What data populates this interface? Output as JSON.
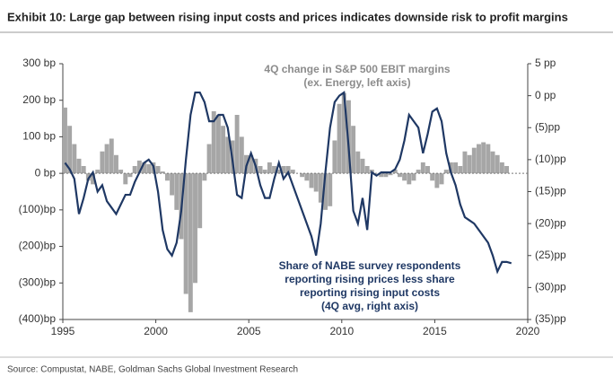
{
  "chart_data": {
    "type": "bar_line",
    "title": "Exhibit 10: Large gap between rising input costs and prices indicates downside risk to profit margins",
    "source": "Source: Compustat, NABE, Goldman Sachs Global Investment Research",
    "annotations": [
      [
        "4Q change in S&P 500 EBIT margins",
        "(ex. Energy, left axis)"
      ],
      [
        "Share of NABE survey respondents",
        "reporting rising prices less share",
        "reporting rising input costs",
        "(4Q avg, right axis)"
      ]
    ],
    "x": [
      1995,
      1995.25,
      1995.5,
      1995.75,
      1996,
      1996.25,
      1996.5,
      1996.75,
      1997,
      1997.25,
      1997.5,
      1997.75,
      1998,
      1998.25,
      1998.5,
      1998.75,
      1999,
      1999.25,
      1999.5,
      1999.75,
      2000,
      2000.25,
      2000.5,
      2000.75,
      2001,
      2001.25,
      2001.5,
      2001.75,
      2002,
      2002.25,
      2002.5,
      2002.75,
      2003,
      2003.25,
      2003.5,
      2003.75,
      2004,
      2004.25,
      2004.5,
      2004.75,
      2005,
      2005.25,
      2005.5,
      2005.75,
      2006,
      2006.25,
      2006.5,
      2006.75,
      2007,
      2007.25,
      2007.5,
      2007.75,
      2008,
      2008.25,
      2008.5,
      2008.75,
      2009,
      2009.25,
      2009.5,
      2009.75,
      2010,
      2010.25,
      2010.5,
      2010.75,
      2011,
      2011.25,
      2011.5,
      2011.75,
      2012,
      2012.25,
      2012.5,
      2012.75,
      2013,
      2013.25,
      2013.5,
      2013.75,
      2014,
      2014.25,
      2014.5,
      2014.75,
      2015,
      2015.25,
      2015.5,
      2015.75,
      2016,
      2016.25,
      2016.5,
      2016.75,
      2017,
      2017.25,
      2017.5,
      2017.75,
      2018,
      2018.25,
      2018.5,
      2018.75,
      2019
    ],
    "series": [
      {
        "name": "4Q change in S&P 500 EBIT margins",
        "color": "#a6a6a6",
        "axis": "y",
        "values": [
          180,
          130,
          80,
          40,
          20,
          -20,
          -30,
          10,
          60,
          80,
          95,
          50,
          10,
          -30,
          -10,
          20,
          35,
          30,
          25,
          30,
          20,
          5,
          -20,
          -60,
          -100,
          -180,
          -330,
          -380,
          -300,
          -150,
          -20,
          80,
          170,
          160,
          130,
          100,
          90,
          160,
          100,
          50,
          50,
          40,
          20,
          10,
          30,
          20,
          10,
          20,
          20,
          10,
          0,
          -10,
          -20,
          -40,
          -50,
          -80,
          -100,
          -90,
          90,
          190,
          220,
          200,
          130,
          60,
          40,
          20,
          10,
          0,
          -10,
          -10,
          -5,
          10,
          -10,
          -20,
          -30,
          -20,
          10,
          30,
          20,
          -20,
          -40,
          -30,
          10,
          30,
          30,
          20,
          60,
          50,
          70,
          80,
          85,
          80,
          60,
          50,
          30,
          20,
          null
        ]
      },
      {
        "name": "Share of NABE survey respondents reporting rising prices less share reporting rising input costs",
        "color": "#1f3864",
        "axis": "y2",
        "values": [
          -10.5,
          -11.5,
          -13,
          -18.5,
          -16,
          -13,
          -12,
          -15,
          -14,
          -16.5,
          -17.5,
          -18.5,
          -17,
          -15.5,
          -15.5,
          -13.5,
          -12,
          -10.5,
          -10,
          -11,
          -15,
          -21,
          -24,
          -25,
          -23,
          -18,
          -10,
          -3,
          0.5,
          0.5,
          -1,
          -4,
          -4,
          -3,
          -3,
          -5,
          -10,
          -15.5,
          -16,
          -11,
          -9,
          -11,
          -14,
          -16,
          -16,
          -13,
          -10.5,
          -13,
          -12,
          -14,
          -16,
          -18,
          -20,
          -22,
          -25,
          -20,
          -12,
          -5,
          -1,
          0,
          0.5,
          -8,
          -18,
          -20,
          -16,
          -21,
          -12,
          -12.5,
          -12,
          -12,
          -12,
          -11.5,
          -10,
          -7,
          -3,
          -4,
          -5,
          -9,
          -6,
          -2.5,
          -2,
          -4,
          -9,
          -12,
          -14,
          -17,
          -19,
          -19.5,
          -20,
          -21,
          -22,
          -23,
          -25,
          -27.5,
          -26,
          -26,
          -26.2
        ]
      }
    ],
    "xlim": [
      1995,
      2020
    ],
    "xticks": [
      1995,
      2000,
      2005,
      2010,
      2015,
      2020
    ],
    "ylim": [
      -400,
      300
    ],
    "yticks": [
      {
        "value": 300,
        "label": "300 bp"
      },
      {
        "value": 200,
        "label": "200 bp"
      },
      {
        "value": 100,
        "label": "100 bp"
      },
      {
        "value": 0,
        "label": "0 bp"
      },
      {
        "value": -100,
        "label": "(100)bp"
      },
      {
        "value": -200,
        "label": "(200)bp"
      },
      {
        "value": -300,
        "label": "(300)bp"
      },
      {
        "value": -400,
        "label": "(400)bp"
      }
    ],
    "y2lim": [
      -35,
      5
    ],
    "y2ticks": [
      {
        "value": 5,
        "label": "5 pp"
      },
      {
        "value": 0,
        "label": "0 pp"
      },
      {
        "value": -5,
        "label": "(5)pp"
      },
      {
        "value": -10,
        "label": "(10)pp"
      },
      {
        "value": -15,
        "label": "(15)pp"
      },
      {
        "value": -20,
        "label": "(20)pp"
      },
      {
        "value": -25,
        "label": "(25)pp"
      },
      {
        "value": -30,
        "label": "(30)pp"
      },
      {
        "value": -35,
        "label": "(35)pp"
      }
    ]
  }
}
